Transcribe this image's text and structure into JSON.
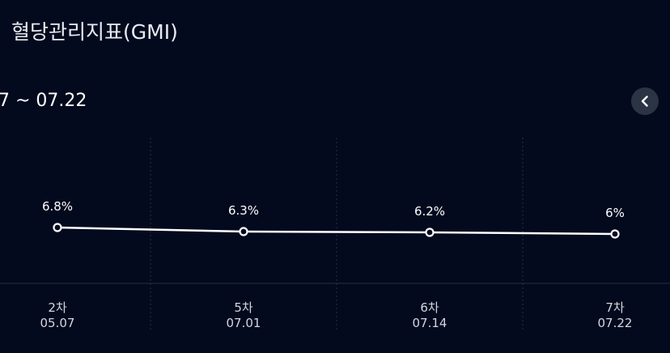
{
  "header": {
    "title": "혈당관리지표(GMI)"
  },
  "period": {
    "range_label": "7 ~ 07.22"
  },
  "nav": {
    "prev_icon": "chevron-left-icon"
  },
  "colors": {
    "background": "#040a1e",
    "line": "#ffffff",
    "grid": "#262e44",
    "nav_button": "#2b3445"
  },
  "chart_data": {
    "type": "line",
    "categories": [
      "2차\n05.07",
      "5차\n07.01",
      "6차\n07.14",
      "7차\n07.22"
    ],
    "x_round": [
      "2차",
      "5차",
      "6차",
      "7차"
    ],
    "x_date": [
      "05.07",
      "07.01",
      "07.14",
      "07.22"
    ],
    "values": [
      6.8,
      6.3,
      6.2,
      6.0
    ],
    "value_labels": [
      "6.8%",
      "6.3%",
      "6.2%",
      "6%"
    ],
    "ylim": [
      4,
      9
    ],
    "grid": "vertical-dashed",
    "legend": "none"
  }
}
